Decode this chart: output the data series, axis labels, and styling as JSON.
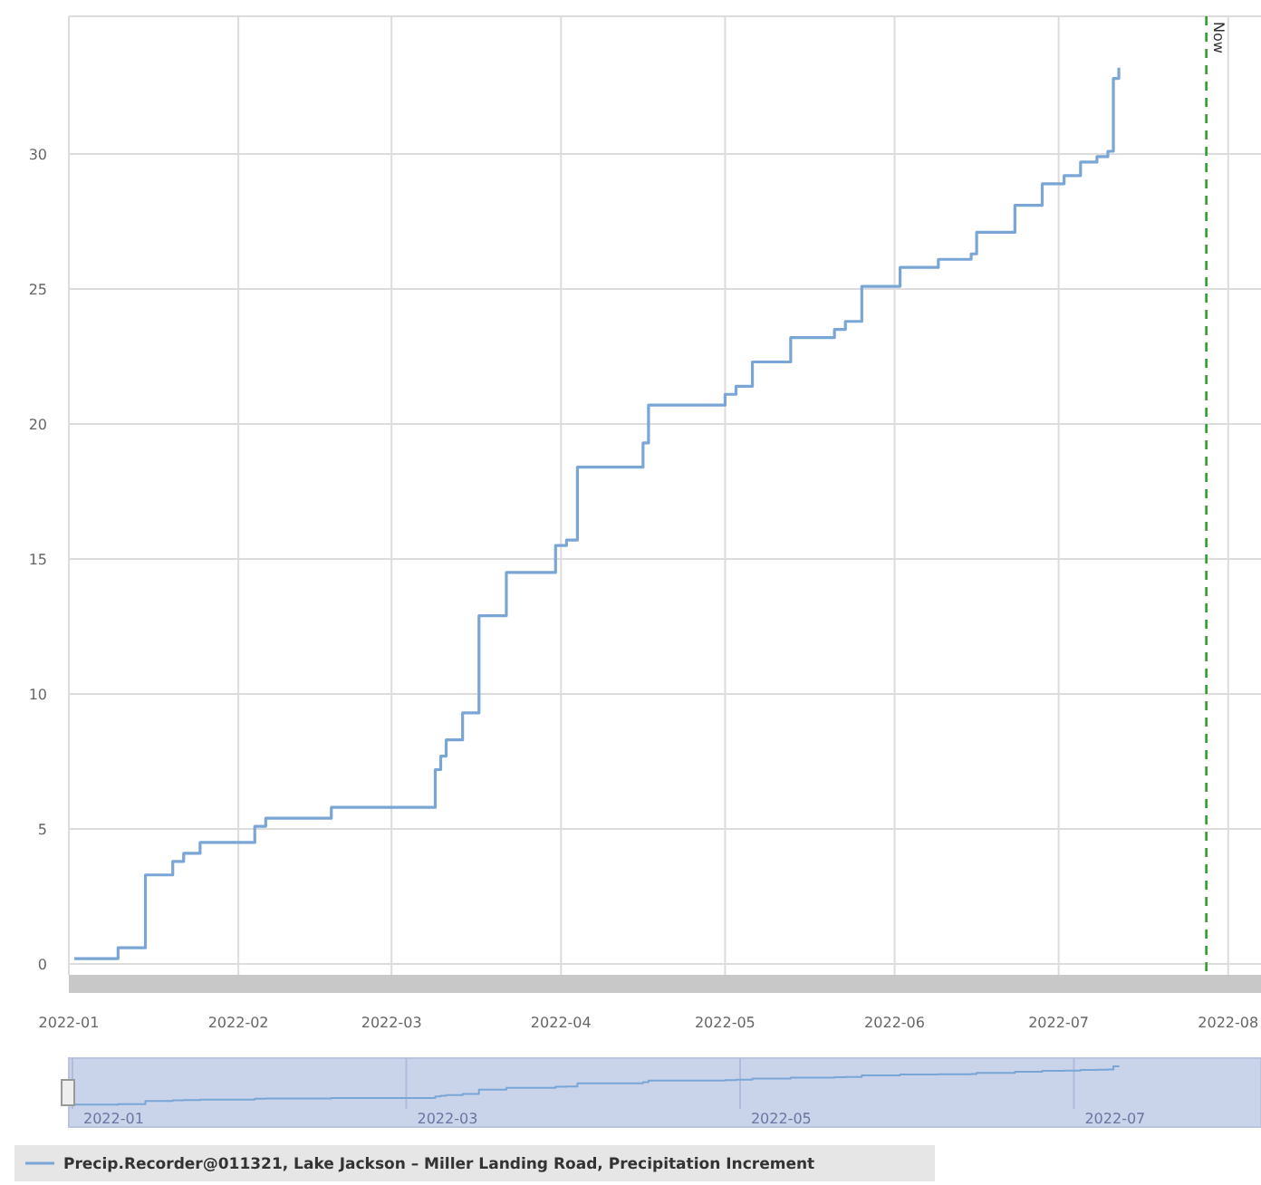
{
  "chart_data": {
    "type": "step",
    "x": [
      "2022-01-02",
      "2022-01-10",
      "2022-01-15",
      "2022-01-20",
      "2022-01-22",
      "2022-01-25",
      "2022-02-04",
      "2022-02-06",
      "2022-02-18",
      "2022-03-09",
      "2022-03-10",
      "2022-03-11",
      "2022-03-14",
      "2022-03-17",
      "2022-03-22",
      "2022-03-31",
      "2022-04-02",
      "2022-04-04",
      "2022-04-16",
      "2022-04-17",
      "2022-05-01",
      "2022-05-03",
      "2022-05-06",
      "2022-05-13",
      "2022-05-21",
      "2022-05-23",
      "2022-05-26",
      "2022-06-02",
      "2022-06-09",
      "2022-06-15",
      "2022-06-16",
      "2022-06-23",
      "2022-06-28",
      "2022-07-02",
      "2022-07-05",
      "2022-07-08",
      "2022-07-10",
      "2022-07-11",
      "2022-07-12"
    ],
    "series": [
      {
        "name": "Precip.Recorder@011321, Lake Jackson – Miller Landing Road, Precipitation Increment",
        "color": "#7aa6d6",
        "values": [
          0.2,
          0.6,
          3.3,
          3.8,
          4.1,
          4.5,
          5.1,
          5.4,
          5.8,
          7.2,
          7.7,
          8.3,
          9.3,
          12.9,
          14.5,
          15.5,
          15.7,
          18.4,
          19.3,
          20.7,
          21.1,
          21.4,
          22.3,
          23.2,
          23.5,
          23.8,
          25.1,
          25.8,
          26.1,
          26.3,
          27.1,
          28.1,
          28.9,
          29.2,
          29.7,
          29.9,
          30.1,
          32.8,
          33.2
        ]
      }
    ],
    "xlim": [
      "2022-01-01",
      "2022-08-07"
    ],
    "xticks": [
      "2022-01",
      "2022-02",
      "2022-03",
      "2022-04",
      "2022-05",
      "2022-06",
      "2022-07",
      "2022-08"
    ],
    "annotations": [
      "2022-01",
      "2022-03",
      "2022-05",
      "2022-07"
    ],
    "ylim": [
      -0.4,
      35.1
    ],
    "yticks": [
      0,
      5,
      10,
      15,
      20,
      25,
      30
    ],
    "grid": true,
    "legend": "bottom",
    "ref_lines": [
      {
        "axis": "x",
        "value": "2022-07-28",
        "label": "Now",
        "color": "#2e9e2e",
        "line_style": "dashed"
      }
    ]
  }
}
